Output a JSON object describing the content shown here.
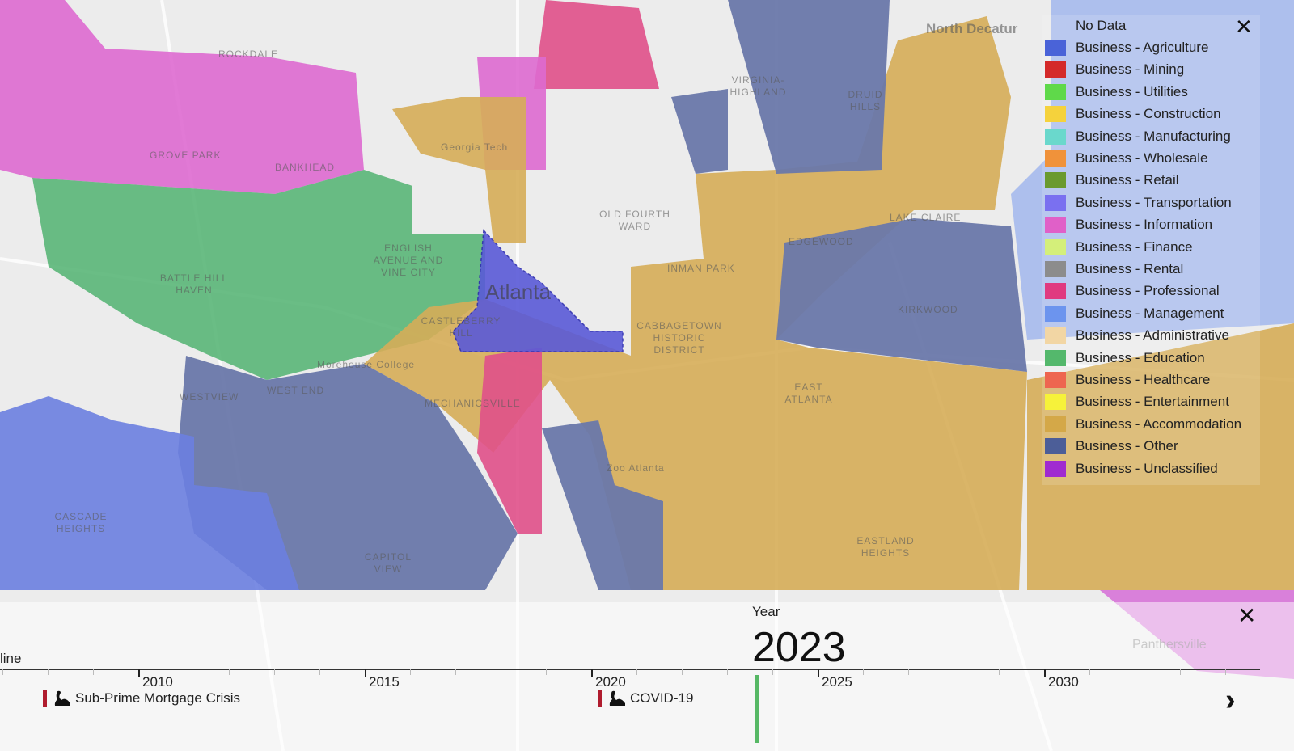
{
  "map": {
    "city_label": "Atlanta",
    "place_labels": [
      "ROCKDALE",
      "GROVE PARK",
      "BANKHEAD",
      "BATTLE HILL HAVEN",
      "ENGLISH AVENUE AND VINE CITY",
      "Georgia Tech",
      "OLD FOURTH WARD",
      "INMAN PARK",
      "EDGEWOOD",
      "LAKE CLAIRE",
      "KIRKWOOD",
      "CASTLEBERRY HILL",
      "CABBAGETOWN HISTORIC DISTRICT",
      "Morehouse College",
      "MECHANICSVILLE",
      "WEST END",
      "WESTVIEW",
      "Zoo Atlanta",
      "EAST ATLANTA",
      "CASCADE HEIGHTS",
      "CAPITOL VIEW",
      "EASTLAND HEIGHTS",
      "DRUID HILLS",
      "VIRGINIA-HIGHLAND",
      "North Decatur",
      "Panthersville"
    ]
  },
  "legend": {
    "items": [
      {
        "label": "No Data",
        "color": ""
      },
      {
        "label": "Business - Agriculture",
        "color": "#4a63d8"
      },
      {
        "label": "Business - Mining",
        "color": "#d42a2a"
      },
      {
        "label": "Business - Utilities",
        "color": "#5fd94a"
      },
      {
        "label": "Business - Construction",
        "color": "#f5d23c"
      },
      {
        "label": "Business - Manufacturing",
        "color": "#6ad8cc"
      },
      {
        "label": "Business - Wholesale",
        "color": "#f0923a"
      },
      {
        "label": "Business - Retail",
        "color": "#6a9a2e"
      },
      {
        "label": "Business - Transportation",
        "color": "#7a70f0"
      },
      {
        "label": "Business - Information",
        "color": "#e060c8"
      },
      {
        "label": "Business - Finance",
        "color": "#d4ef7a"
      },
      {
        "label": "Business - Rental",
        "color": "#8c8c8c"
      },
      {
        "label": "Business - Professional",
        "color": "#e03a80"
      },
      {
        "label": "Business - Management",
        "color": "#6c94ee"
      },
      {
        "label": "Business - Administrative",
        "color": "#f2d6a4"
      },
      {
        "label": "Business - Education",
        "color": "#54b86c"
      },
      {
        "label": "Business - Healthcare",
        "color": "#ee6650"
      },
      {
        "label": "Business - Entertainment",
        "color": "#f6f23a"
      },
      {
        "label": "Business - Accommodation",
        "color": "#d4a848"
      },
      {
        "label": "Business - Other",
        "color": "#4c5e98"
      },
      {
        "label": "Business - Unclassified",
        "color": "#a02ad0"
      }
    ],
    "close_icon": "close-icon"
  },
  "timeline": {
    "title_partial": "line",
    "year_label": "Year",
    "year_value": "2023",
    "ticks": [
      "2010",
      "2015",
      "2020",
      "2025",
      "2030"
    ],
    "events": [
      {
        "label": "Sub-Prime Mortgage Crisis",
        "icon": "black-swan-icon",
        "year": 2008
      },
      {
        "label": "COVID-19",
        "icon": "black-swan-icon",
        "year": 2020
      }
    ],
    "cursor_color": "#56b865"
  }
}
